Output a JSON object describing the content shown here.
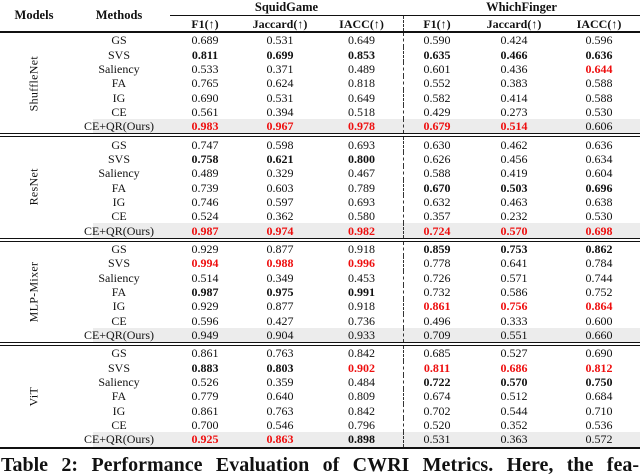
{
  "colors": {
    "accent_red": "#ee0f0f",
    "highlight_bg": "#ececec",
    "rule": "#111111"
  },
  "caption": "Table 2: Performance Evaluation of CWRI Metrics. Here, the fea-",
  "table": {
    "headers": {
      "models": "Models",
      "methods": "Methods"
    },
    "groups": [
      {
        "label": "SquidGame"
      },
      {
        "label": "WhichFinger"
      }
    ],
    "metrics": [
      "F1(↑)",
      "Jaccard(↑)",
      "IACC(↑)",
      "F1(↑)",
      "Jaccard(↑)",
      "IACC(↑)"
    ],
    "sections": [
      {
        "model": "ShuffleNet",
        "rows": [
          {
            "method": "GS",
            "highlight": false,
            "values": [
              "0.689",
              "0.531",
              "0.649",
              "0.590",
              "0.424",
              "0.596"
            ],
            "styles": [
              "n",
              "n",
              "n",
              "n",
              "n",
              "n"
            ]
          },
          {
            "method": "SVS",
            "highlight": false,
            "values": [
              "0.811",
              "0.699",
              "0.853",
              "0.635",
              "0.466",
              "0.636"
            ],
            "styles": [
              "b",
              "b",
              "b",
              "b",
              "b",
              "b"
            ]
          },
          {
            "method": "Saliency",
            "highlight": false,
            "values": [
              "0.533",
              "0.371",
              "0.489",
              "0.601",
              "0.436",
              "0.644"
            ],
            "styles": [
              "n",
              "n",
              "n",
              "n",
              "n",
              "r"
            ]
          },
          {
            "method": "FA",
            "highlight": false,
            "values": [
              "0.765",
              "0.624",
              "0.818",
              "0.552",
              "0.383",
              "0.588"
            ],
            "styles": [
              "n",
              "n",
              "n",
              "n",
              "n",
              "n"
            ]
          },
          {
            "method": "IG",
            "highlight": false,
            "values": [
              "0.690",
              "0.531",
              "0.649",
              "0.582",
              "0.414",
              "0.588"
            ],
            "styles": [
              "n",
              "n",
              "n",
              "n",
              "n",
              "n"
            ]
          },
          {
            "method": "CE",
            "highlight": false,
            "values": [
              "0.561",
              "0.394",
              "0.518",
              "0.429",
              "0.273",
              "0.530"
            ],
            "styles": [
              "n",
              "n",
              "n",
              "n",
              "n",
              "n"
            ]
          },
          {
            "method": "CE+QR(Ours)",
            "highlight": true,
            "values": [
              "0.983",
              "0.967",
              "0.978",
              "0.679",
              "0.514",
              "0.606"
            ],
            "styles": [
              "r",
              "r",
              "r",
              "r",
              "r",
              "n"
            ]
          }
        ]
      },
      {
        "model": "ResNet",
        "rows": [
          {
            "method": "GS",
            "highlight": false,
            "values": [
              "0.747",
              "0.598",
              "0.693",
              "0.630",
              "0.462",
              "0.636"
            ],
            "styles": [
              "n",
              "n",
              "n",
              "n",
              "n",
              "n"
            ]
          },
          {
            "method": "SVS",
            "highlight": false,
            "values": [
              "0.758",
              "0.621",
              "0.800",
              "0.626",
              "0.456",
              "0.634"
            ],
            "styles": [
              "b",
              "b",
              "b",
              "n",
              "n",
              "n"
            ]
          },
          {
            "method": "Saliency",
            "highlight": false,
            "values": [
              "0.489",
              "0.329",
              "0.467",
              "0.588",
              "0.419",
              "0.604"
            ],
            "styles": [
              "n",
              "n",
              "n",
              "n",
              "n",
              "n"
            ]
          },
          {
            "method": "FA",
            "highlight": false,
            "values": [
              "0.739",
              "0.603",
              "0.789",
              "0.670",
              "0.503",
              "0.696"
            ],
            "styles": [
              "n",
              "n",
              "n",
              "b",
              "b",
              "b"
            ]
          },
          {
            "method": "IG",
            "highlight": false,
            "values": [
              "0.746",
              "0.597",
              "0.693",
              "0.632",
              "0.463",
              "0.638"
            ],
            "styles": [
              "n",
              "n",
              "n",
              "n",
              "n",
              "n"
            ]
          },
          {
            "method": "CE",
            "highlight": false,
            "values": [
              "0.524",
              "0.362",
              "0.580",
              "0.357",
              "0.232",
              "0.530"
            ],
            "styles": [
              "n",
              "n",
              "n",
              "n",
              "n",
              "n"
            ]
          },
          {
            "method": "CE+QR(Ours)",
            "highlight": true,
            "values": [
              "0.987",
              "0.974",
              "0.982",
              "0.724",
              "0.570",
              "0.698"
            ],
            "styles": [
              "r",
              "r",
              "r",
              "r",
              "r",
              "r"
            ]
          }
        ]
      },
      {
        "model": "MLP-Mixer",
        "rows": [
          {
            "method": "GS",
            "highlight": false,
            "values": [
              "0.929",
              "0.877",
              "0.918",
              "0.859",
              "0.753",
              "0.862"
            ],
            "styles": [
              "n",
              "n",
              "n",
              "b",
              "b",
              "b"
            ]
          },
          {
            "method": "SVS",
            "highlight": false,
            "values": [
              "0.994",
              "0.988",
              "0.996",
              "0.778",
              "0.641",
              "0.784"
            ],
            "styles": [
              "r",
              "r",
              "r",
              "n",
              "n",
              "n"
            ]
          },
          {
            "method": "Saliency",
            "highlight": false,
            "values": [
              "0.514",
              "0.349",
              "0.453",
              "0.726",
              "0.571",
              "0.744"
            ],
            "styles": [
              "n",
              "n",
              "n",
              "n",
              "n",
              "n"
            ]
          },
          {
            "method": "FA",
            "highlight": false,
            "values": [
              "0.987",
              "0.975",
              "0.991",
              "0.732",
              "0.586",
              "0.752"
            ],
            "styles": [
              "b",
              "b",
              "b",
              "n",
              "n",
              "n"
            ]
          },
          {
            "method": "IG",
            "highlight": false,
            "values": [
              "0.929",
              "0.877",
              "0.918",
              "0.861",
              "0.756",
              "0.864"
            ],
            "styles": [
              "n",
              "n",
              "n",
              "r",
              "r",
              "r"
            ]
          },
          {
            "method": "CE",
            "highlight": false,
            "values": [
              "0.596",
              "0.427",
              "0.736",
              "0.496",
              "0.333",
              "0.600"
            ],
            "styles": [
              "n",
              "n",
              "n",
              "n",
              "n",
              "n"
            ]
          },
          {
            "method": "CE+QR(Ours)",
            "highlight": true,
            "values": [
              "0.949",
              "0.904",
              "0.933",
              "0.709",
              "0.551",
              "0.660"
            ],
            "styles": [
              "n",
              "n",
              "n",
              "n",
              "n",
              "n"
            ]
          }
        ]
      },
      {
        "model": "ViT",
        "rows": [
          {
            "method": "GS",
            "highlight": false,
            "values": [
              "0.861",
              "0.763",
              "0.842",
              "0.685",
              "0.527",
              "0.690"
            ],
            "styles": [
              "n",
              "n",
              "n",
              "n",
              "n",
              "n"
            ]
          },
          {
            "method": "SVS",
            "highlight": false,
            "values": [
              "0.883",
              "0.803",
              "0.902",
              "0.811",
              "0.686",
              "0.812"
            ],
            "styles": [
              "b",
              "b",
              "r",
              "r",
              "r",
              "r"
            ]
          },
          {
            "method": "Saliency",
            "highlight": false,
            "values": [
              "0.526",
              "0.359",
              "0.484",
              "0.722",
              "0.570",
              "0.750"
            ],
            "styles": [
              "n",
              "n",
              "n",
              "b",
              "b",
              "b"
            ]
          },
          {
            "method": "FA",
            "highlight": false,
            "values": [
              "0.779",
              "0.640",
              "0.809",
              "0.674",
              "0.512",
              "0.684"
            ],
            "styles": [
              "n",
              "n",
              "n",
              "n",
              "n",
              "n"
            ]
          },
          {
            "method": "IG",
            "highlight": false,
            "values": [
              "0.861",
              "0.763",
              "0.842",
              "0.702",
              "0.544",
              "0.710"
            ],
            "styles": [
              "n",
              "n",
              "n",
              "n",
              "n",
              "n"
            ]
          },
          {
            "method": "CE",
            "highlight": false,
            "values": [
              "0.700",
              "0.546",
              "0.796",
              "0.520",
              "0.352",
              "0.536"
            ],
            "styles": [
              "n",
              "n",
              "n",
              "n",
              "n",
              "n"
            ]
          },
          {
            "method": "CE+QR(Ours)",
            "highlight": true,
            "values": [
              "0.925",
              "0.863",
              "0.898",
              "0.531",
              "0.363",
              "0.572"
            ],
            "styles": [
              "r",
              "r",
              "b",
              "n",
              "n",
              "n"
            ]
          }
        ]
      }
    ]
  }
}
